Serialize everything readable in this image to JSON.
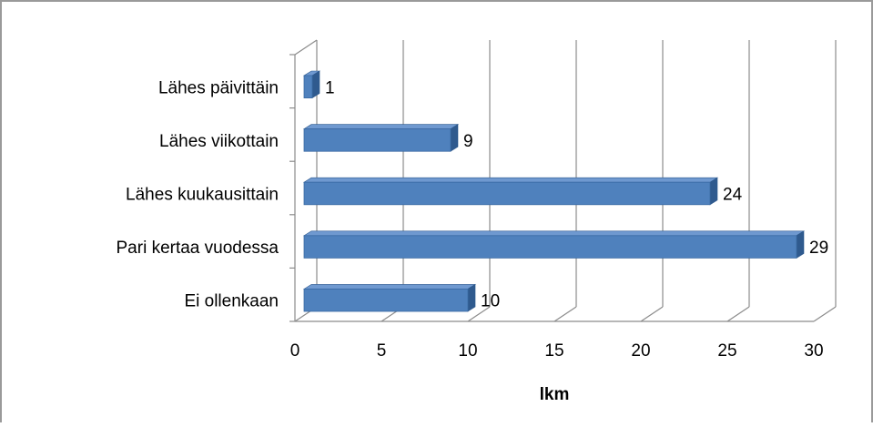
{
  "chart_data": {
    "type": "bar",
    "orientation": "horizontal",
    "style": "3d",
    "categories": [
      "Lähes päivittäin",
      "Lähes viikottain",
      "Lähes kuukausittain",
      "Pari kertaa vuodessa",
      "Ei ollenkaan"
    ],
    "values": [
      1,
      9,
      24,
      29,
      10
    ],
    "data_labels": [
      "1",
      "9",
      "24",
      "29",
      "10"
    ],
    "xlabel": "lkm",
    "ylabel": "",
    "xlim": [
      0,
      30
    ],
    "x_ticks": [
      "0",
      "5",
      "10",
      "15",
      "20",
      "25",
      "30"
    ],
    "grid": true,
    "legend": "none",
    "colors": {
      "bar_front": "#4f81bd",
      "bar_top": "#6f99d0",
      "bar_side": "#2f5a8e",
      "grid": "#8c8c8c",
      "text": "#000000"
    }
  }
}
